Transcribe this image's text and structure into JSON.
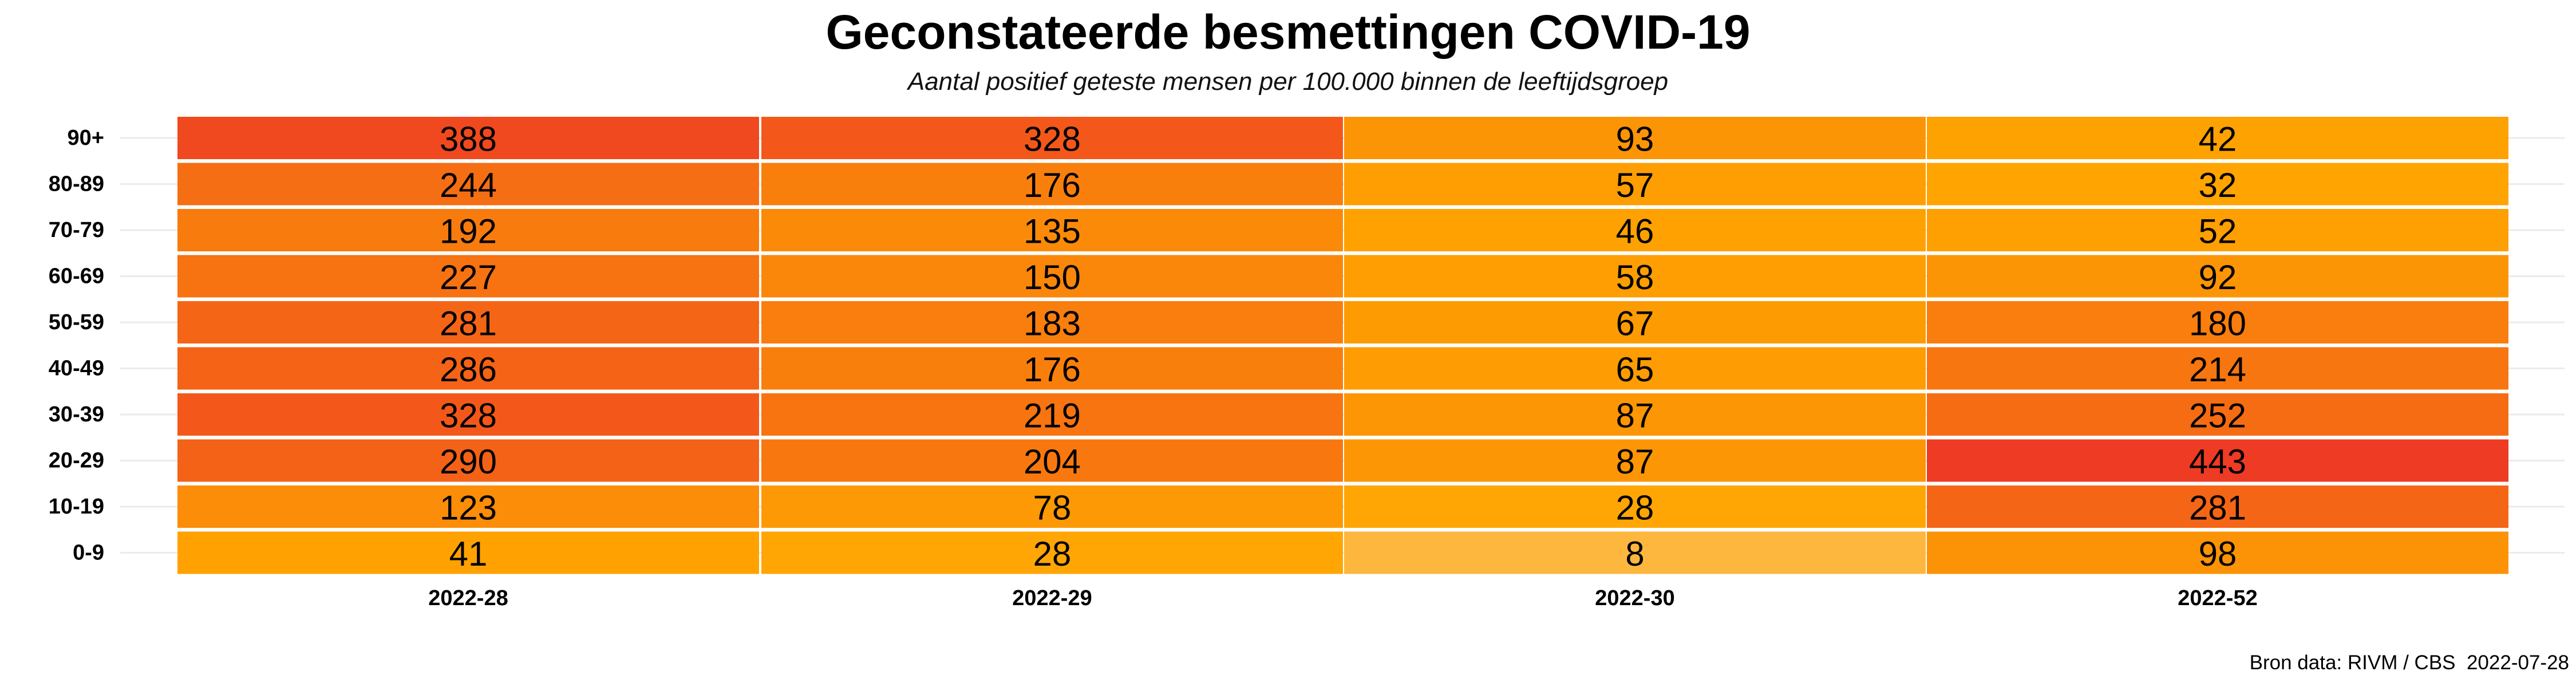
{
  "chart_data": {
    "type": "heatmap",
    "title": "Geconstateerde besmettingen COVID-19",
    "subtitle": "Aantal positief geteste mensen per 100.000 binnen de leeftijdsgroep",
    "x_categories": [
      "2022-28",
      "2022-29",
      "2022-30",
      "2022-52"
    ],
    "y_categories": [
      "90+",
      "80-89",
      "70-79",
      "60-69",
      "50-59",
      "40-49",
      "30-39",
      "20-29",
      "10-19",
      "0-9"
    ],
    "values": [
      [
        388,
        328,
        93,
        42
      ],
      [
        244,
        176,
        57,
        32
      ],
      [
        192,
        135,
        46,
        52
      ],
      [
        227,
        150,
        58,
        92
      ],
      [
        281,
        183,
        67,
        180
      ],
      [
        286,
        176,
        65,
        214
      ],
      [
        328,
        219,
        87,
        252
      ],
      [
        290,
        204,
        87,
        443
      ],
      [
        123,
        78,
        28,
        281
      ],
      [
        41,
        28,
        8,
        98
      ]
    ],
    "color_scale": {
      "low": "#FDB73E",
      "mid": "#FFA500",
      "high": "#EE3B24"
    },
    "xlabel": "",
    "ylabel": "",
    "grid": true,
    "legend": "none"
  },
  "caption": "Bron data: RIVM / CBS  2022-07-28"
}
